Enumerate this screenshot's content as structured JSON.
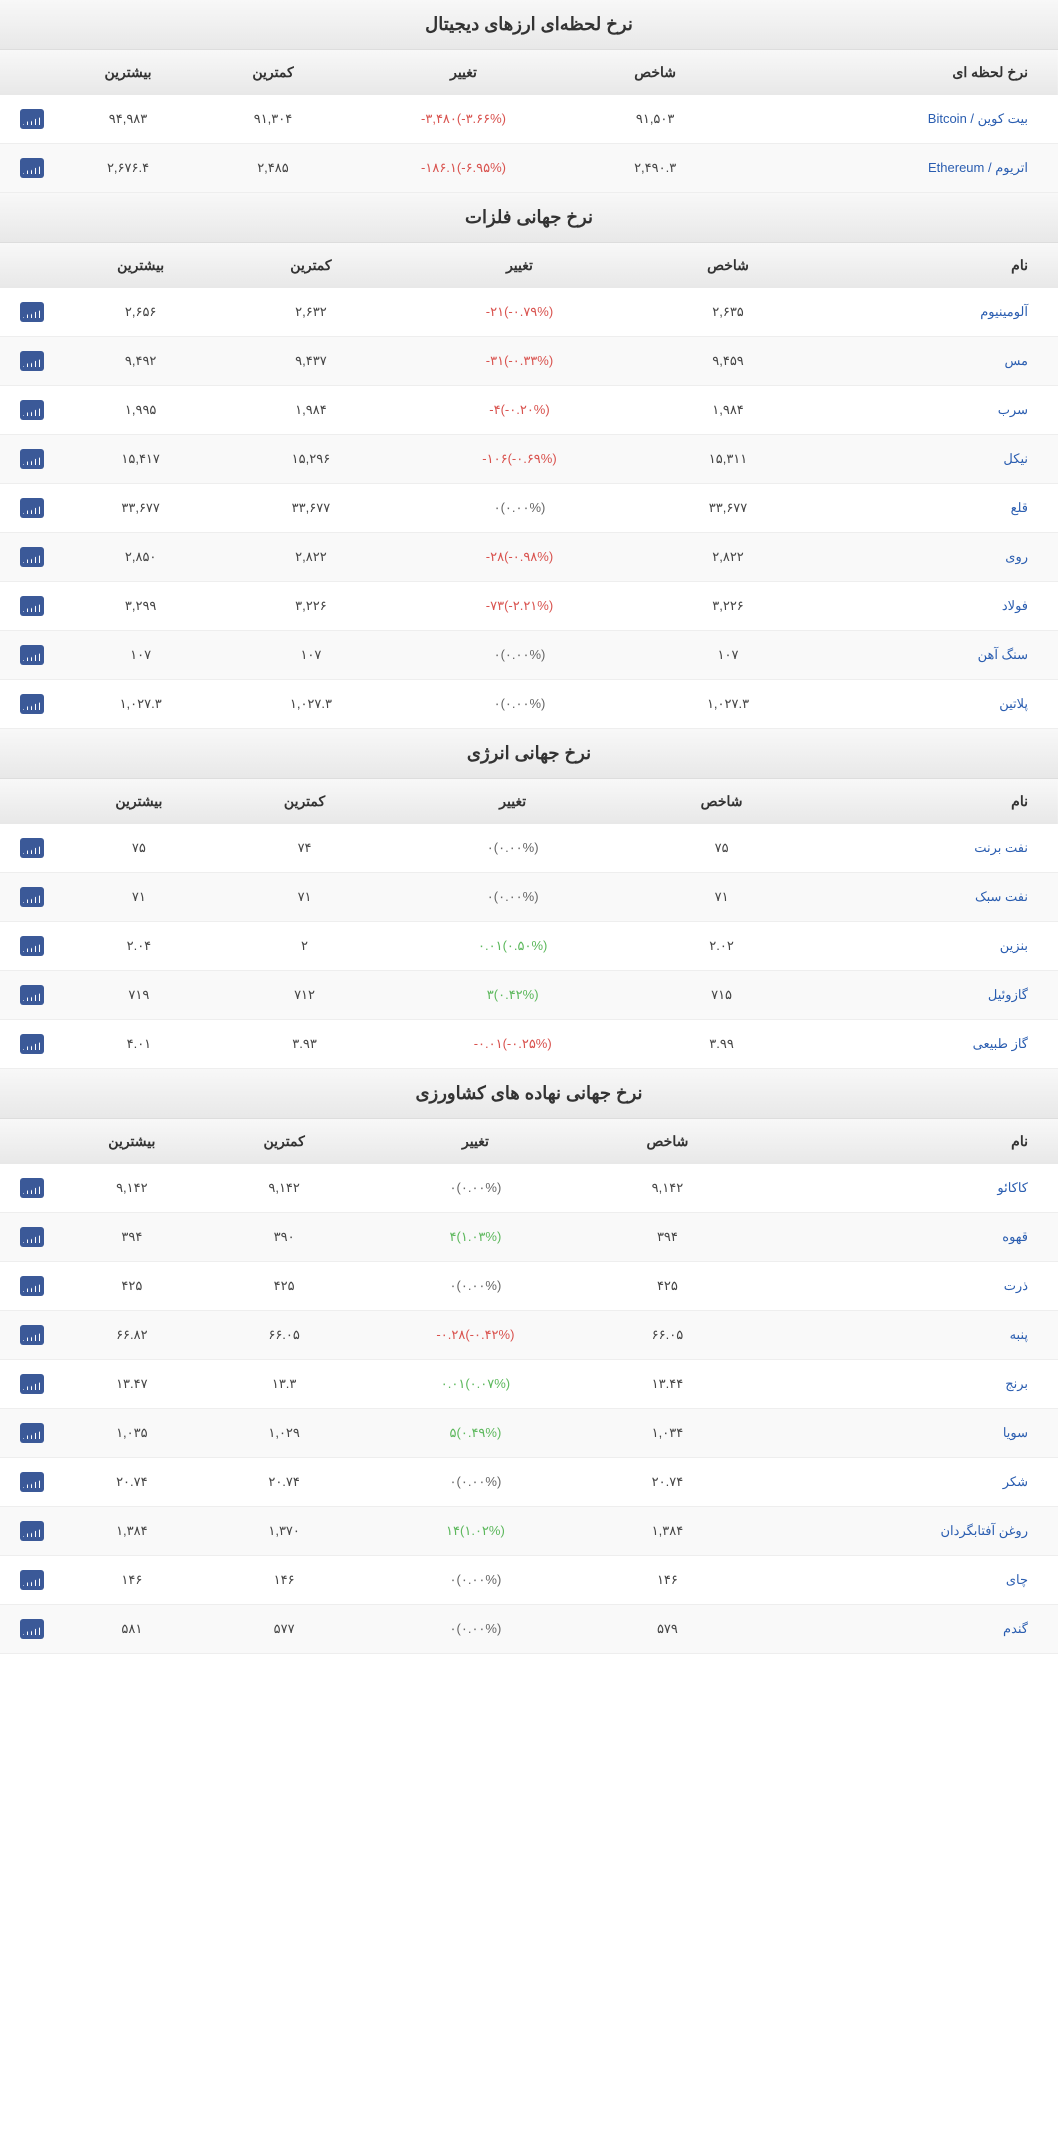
{
  "columns": {
    "name": "نام",
    "rate": "نرخ لحظه ای",
    "index": "شاخص",
    "change": "تغییر",
    "low": "کمترین",
    "high": "بیشترین"
  },
  "sections": [
    {
      "title": "نرخ لحظه‌ای ارزهای دیجیتال",
      "nameHeaderKey": "rate",
      "rows": [
        {
          "n": "بیت کوین / Bitcoin",
          "i": "۹۱,۵۰۳",
          "c": "-۳,۴۸۰",
          "p": "-۳.۶۶%",
          "d": "neg",
          "l": "۹۱,۳۰۴",
          "h": "۹۴,۹۸۳"
        },
        {
          "n": "اتریوم / Ethereum",
          "i": "۲,۴۹۰.۳",
          "c": "-۱۸۶.۱",
          "p": "-۶.۹۵%",
          "d": "neg",
          "l": "۲,۴۸۵",
          "h": "۲,۶۷۶.۴"
        }
      ]
    },
    {
      "title": "نرخ جهانی فلزات",
      "nameHeaderKey": "name",
      "rows": [
        {
          "n": "آلومینیوم",
          "i": "۲,۶۳۵",
          "c": "-۲۱",
          "p": "-۰.۷۹%",
          "d": "neg",
          "l": "۲,۶۳۲",
          "h": "۲,۶۵۶"
        },
        {
          "n": "مس",
          "i": "۹,۴۵۹",
          "c": "-۳۱",
          "p": "-۰.۳۳%",
          "d": "neg",
          "l": "۹,۴۳۷",
          "h": "۹,۴۹۲"
        },
        {
          "n": "سرب",
          "i": "۱,۹۸۴",
          "c": "-۴",
          "p": "-۰.۲۰%",
          "d": "neg",
          "l": "۱,۹۸۴",
          "h": "۱,۹۹۵"
        },
        {
          "n": "نیکل",
          "i": "۱۵,۳۱۱",
          "c": "-۱۰۶",
          "p": "-۰.۶۹%",
          "d": "neg",
          "l": "۱۵,۲۹۶",
          "h": "۱۵,۴۱۷"
        },
        {
          "n": "قلع",
          "i": "۳۳,۶۷۷",
          "c": "۰",
          "p": "۰.۰۰%",
          "d": "neu",
          "l": "۳۳,۶۷۷",
          "h": "۳۳,۶۷۷"
        },
        {
          "n": "روی",
          "i": "۲,۸۲۲",
          "c": "-۲۸",
          "p": "-۰.۹۸%",
          "d": "neg",
          "l": "۲,۸۲۲",
          "h": "۲,۸۵۰"
        },
        {
          "n": "فولاد",
          "i": "۳,۲۲۶",
          "c": "-۷۳",
          "p": "-۲.۲۱%",
          "d": "neg",
          "l": "۳,۲۲۶",
          "h": "۳,۲۹۹"
        },
        {
          "n": "سنگ آهن",
          "i": "۱۰۷",
          "c": "۰",
          "p": "۰.۰۰%",
          "d": "neu",
          "l": "۱۰۷",
          "h": "۱۰۷"
        },
        {
          "n": "پلاتین",
          "i": "۱,۰۲۷.۳",
          "c": "۰",
          "p": "۰.۰۰%",
          "d": "neu",
          "l": "۱,۰۲۷.۳",
          "h": "۱,۰۲۷.۳"
        }
      ]
    },
    {
      "title": "نرخ جهانی انرژی",
      "nameHeaderKey": "name",
      "rows": [
        {
          "n": "نفت برنت",
          "i": "۷۵",
          "c": "۰",
          "p": "۰.۰۰%",
          "d": "neu",
          "l": "۷۴",
          "h": "۷۵"
        },
        {
          "n": "نفت سبک",
          "i": "۷۱",
          "c": "۰",
          "p": "۰.۰۰%",
          "d": "neu",
          "l": "۷۱",
          "h": "۷۱"
        },
        {
          "n": "بنزین",
          "i": "۲.۰۲",
          "c": "۰.۰۱",
          "p": "۰.۵۰%",
          "d": "pos",
          "l": "۲",
          "h": "۲.۰۴"
        },
        {
          "n": "گازوئیل",
          "i": "۷۱۵",
          "c": "۳",
          "p": "۰.۴۲%",
          "d": "pos",
          "l": "۷۱۲",
          "h": "۷۱۹"
        },
        {
          "n": "گاز طبیعی",
          "i": "۳.۹۹",
          "c": "-۰.۰۱",
          "p": "-۰.۲۵%",
          "d": "neg",
          "l": "۳.۹۳",
          "h": "۴.۰۱"
        }
      ]
    },
    {
      "title": "نرخ جهانی نهاده های کشاورزی",
      "nameHeaderKey": "name",
      "rows": [
        {
          "n": "کاکائو",
          "i": "۹,۱۴۲",
          "c": "۰",
          "p": "۰.۰۰%",
          "d": "neu",
          "l": "۹,۱۴۲",
          "h": "۹,۱۴۲"
        },
        {
          "n": "قهوه",
          "i": "۳۹۴",
          "c": "۴",
          "p": "۱.۰۳%",
          "d": "pos",
          "l": "۳۹۰",
          "h": "۳۹۴"
        },
        {
          "n": "ذرت",
          "i": "۴۲۵",
          "c": "۰",
          "p": "۰.۰۰%",
          "d": "neu",
          "l": "۴۲۵",
          "h": "۴۲۵"
        },
        {
          "n": "پنبه",
          "i": "۶۶.۰۵",
          "c": "-۰.۲۸",
          "p": "-۰.۴۲%",
          "d": "neg",
          "l": "۶۶.۰۵",
          "h": "۶۶.۸۲"
        },
        {
          "n": "برنج",
          "i": "۱۳.۴۴",
          "c": "۰.۰۱",
          "p": "۰.۰۷%",
          "d": "pos",
          "l": "۱۳.۳",
          "h": "۱۳.۴۷"
        },
        {
          "n": "سویا",
          "i": "۱,۰۳۴",
          "c": "۵",
          "p": "۰.۴۹%",
          "d": "pos",
          "l": "۱,۰۲۹",
          "h": "۱,۰۳۵"
        },
        {
          "n": "شکر",
          "i": "۲۰.۷۴",
          "c": "۰",
          "p": "۰.۰۰%",
          "d": "neu",
          "l": "۲۰.۷۴",
          "h": "۲۰.۷۴"
        },
        {
          "n": "روغن آفتابگردان",
          "i": "۱,۳۸۴",
          "c": "۱۴",
          "p": "۱.۰۲%",
          "d": "pos",
          "l": "۱,۳۷۰",
          "h": "۱,۳۸۴"
        },
        {
          "n": "چای",
          "i": "۱۴۶",
          "c": "۰",
          "p": "۰.۰۰%",
          "d": "neu",
          "l": "۱۴۶",
          "h": "۱۴۶"
        },
        {
          "n": "گندم",
          "i": "۵۷۹",
          "c": "۰",
          "p": "۰.۰۰%",
          "d": "neu",
          "l": "۵۷۷",
          "h": "۵۸۱"
        }
      ]
    }
  ]
}
